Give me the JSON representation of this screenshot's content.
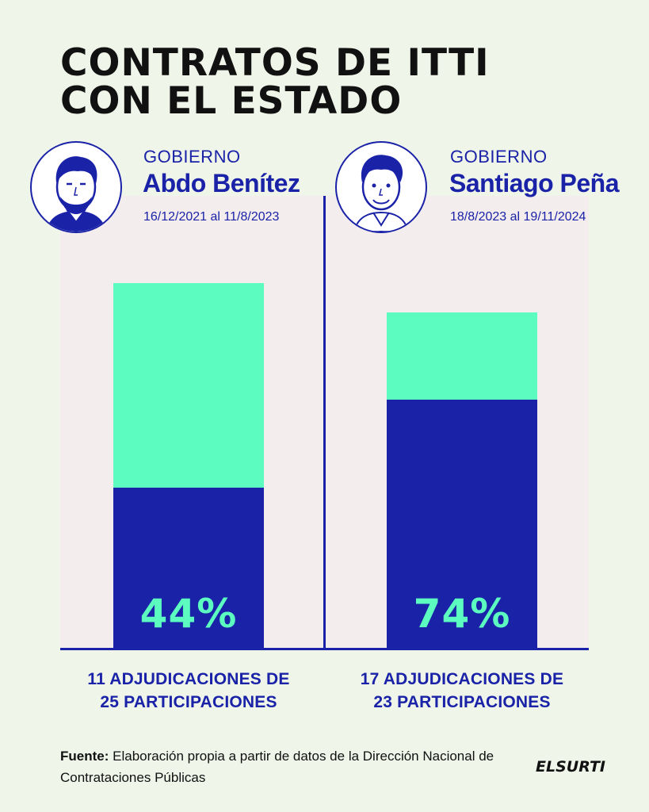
{
  "title": {
    "line1": "CONTRATOS DE ITTI",
    "line2": "CON EL ESTADO"
  },
  "governments": [
    {
      "label": "GOBIERNO",
      "name": "Abdo Benítez",
      "dates": "16/12/2021 al 11/8/2023",
      "caption_line1": "11 ADJUDICACIONES DE",
      "caption_line2": "25 PARTICIPACIONES",
      "percent_label": "44%"
    },
    {
      "label": "GOBIERNO",
      "name": "Santiago Peña",
      "dates": "18/8/2023 al 19/11/2024",
      "caption_line1": "17 ADJUDICACIONES DE",
      "caption_line2": "23 PARTICIPACIONES",
      "percent_label": "74%"
    }
  ],
  "source": {
    "label": "Fuente:",
    "text": "Elaboración propia a partir de datos de la Dirección Nacional de Contrataciones Públicas"
  },
  "logo": {
    "text": "ELSURTI"
  },
  "colors": {
    "awarded": "#1a22a8",
    "participations": "#5cfcc0",
    "panel": "#f4eded",
    "background": "#eff5e9"
  },
  "chart_data": {
    "type": "bar",
    "stacked": true,
    "categories": [
      "Abdo Benítez",
      "Santiago Peña"
    ],
    "series": [
      {
        "values": [
          11,
          17
        ],
        "color": "#1a22a8"
      },
      {
        "values": [
          14,
          6
        ],
        "color": "#5cfcc0"
      }
    ],
    "totals": [
      25,
      23
    ],
    "percent_labels": [
      "44%",
      "74%"
    ],
    "ylim": [
      0,
      31
    ],
    "grid": false
  }
}
